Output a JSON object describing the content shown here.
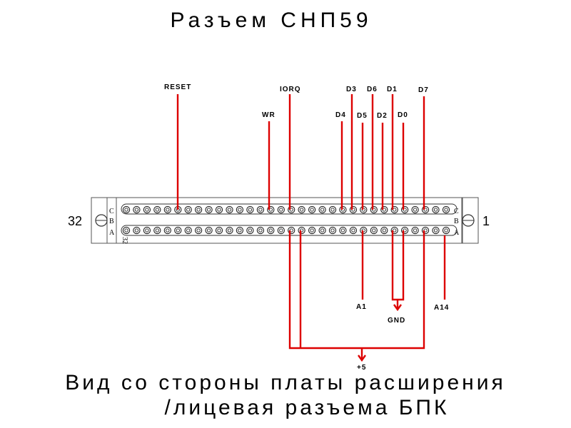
{
  "title": "Разъем СНП59",
  "caption_line1": "Вид со стороны платы расширения",
  "caption_line2": "/лицевая разъема БПК",
  "connector": {
    "end_left": "32",
    "end_right": "1",
    "row_labels": [
      "C",
      "B",
      "A"
    ],
    "small_pin_label": "32"
  },
  "signals": {
    "reset": "RESET",
    "wr": "WR",
    "iorq": "IORQ",
    "d0": "D0",
    "d1": "D1",
    "d2": "D2",
    "d3": "D3",
    "d4": "D4",
    "d5": "D5",
    "d6": "D6",
    "d7": "D7",
    "a1": "A1",
    "a14": "A14",
    "gnd": "GND",
    "plus5": "+5"
  },
  "colors": {
    "wire": "#dd0000",
    "outline": "#000000"
  }
}
